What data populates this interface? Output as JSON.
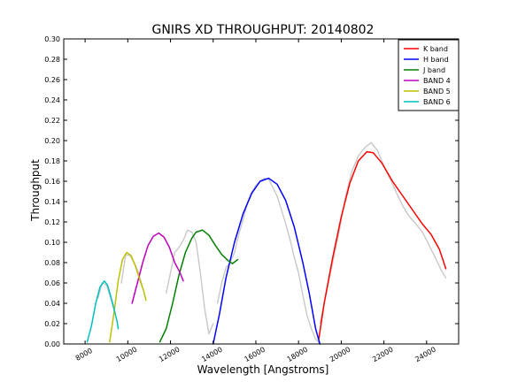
{
  "chart_data": {
    "type": "line",
    "title": "GNIRS XD THROUGHPUT:  20140802",
    "xlabel": "Wavelength [Angstroms]",
    "ylabel": "Throughput",
    "xlim": [
      7000,
      25500
    ],
    "ylim": [
      0.0,
      0.3
    ],
    "xticks": [
      8000,
      10000,
      12000,
      14000,
      16000,
      18000,
      20000,
      22000,
      24000
    ],
    "xtick_labels": [
      "8000",
      "10000",
      "12000",
      "14000",
      "16000",
      "18000",
      "20000",
      "22000",
      "24000"
    ],
    "yticks": [
      0.0,
      0.02,
      0.04,
      0.06,
      0.08,
      0.1,
      0.12,
      0.14,
      0.16,
      0.18,
      0.2,
      0.22,
      0.24,
      0.26,
      0.28,
      0.3
    ],
    "ytick_labels": [
      "0.00",
      "0.02",
      "0.04",
      "0.06",
      "0.08",
      "0.10",
      "0.12",
      "0.14",
      "0.16",
      "0.18",
      "0.20",
      "0.22",
      "0.24",
      "0.26",
      "0.28",
      "0.30"
    ],
    "grid": false,
    "legend_position": "top-right",
    "series": [
      {
        "name": "K band",
        "color": "#ff0000",
        "x": [
          18950,
          19200,
          19600,
          20000,
          20400,
          20800,
          21200,
          21500,
          21900,
          22400,
          22900,
          23400,
          23800,
          24200,
          24600,
          24900
        ],
        "y": [
          0.005,
          0.04,
          0.085,
          0.125,
          0.158,
          0.18,
          0.189,
          0.188,
          0.178,
          0.16,
          0.145,
          0.13,
          0.118,
          0.108,
          0.093,
          0.074
        ]
      },
      {
        "name": "H band",
        "color": "#0000ff",
        "x": [
          14000,
          14300,
          14600,
          15000,
          15400,
          15800,
          16200,
          16600,
          17000,
          17400,
          17800,
          18200,
          18500,
          18800,
          19000
        ],
        "y": [
          0.0,
          0.03,
          0.065,
          0.1,
          0.128,
          0.148,
          0.16,
          0.163,
          0.157,
          0.141,
          0.115,
          0.08,
          0.05,
          0.015,
          0.0
        ]
      },
      {
        "name": "J band",
        "color": "#008000",
        "x": [
          11500,
          11800,
          12100,
          12400,
          12700,
          13000,
          13200,
          13500,
          13800,
          14100,
          14400,
          14700,
          14900,
          15150
        ],
        "y": [
          0.002,
          0.015,
          0.04,
          0.068,
          0.09,
          0.104,
          0.11,
          0.112,
          0.107,
          0.097,
          0.088,
          0.082,
          0.079,
          0.083
        ]
      },
      {
        "name": "BAND 4",
        "color": "#bf00bf",
        "x": [
          10200,
          10450,
          10700,
          10950,
          11200,
          11450,
          11700,
          11950,
          12200,
          12450,
          12600
        ],
        "y": [
          0.04,
          0.06,
          0.08,
          0.097,
          0.106,
          0.109,
          0.105,
          0.095,
          0.08,
          0.07,
          0.062
        ]
      },
      {
        "name": "BAND 5",
        "color": "#bfbf00",
        "x": [
          9150,
          9350,
          9550,
          9750,
          9950,
          10150,
          10350,
          10550,
          10750,
          10850
        ],
        "y": [
          0.002,
          0.03,
          0.062,
          0.083,
          0.09,
          0.087,
          0.077,
          0.064,
          0.052,
          0.043
        ]
      },
      {
        "name": "BAND 6",
        "color": "#00bfbf",
        "x": [
          8100,
          8300,
          8500,
          8700,
          8900,
          9050,
          9200,
          9350,
          9500,
          9550
        ],
        "y": [
          0.002,
          0.018,
          0.04,
          0.056,
          0.062,
          0.058,
          0.047,
          0.035,
          0.022,
          0.015
        ]
      }
    ],
    "measured_series": {
      "color": "#c8c8c8",
      "segments": [
        {
          "x": [
            8600,
            8800,
            9000,
            9200,
            9400
          ],
          "y": [
            0.045,
            0.06,
            0.058,
            0.045,
            0.03
          ]
        },
        {
          "x": [
            9700,
            9900,
            10100,
            10300,
            10500,
            10700
          ],
          "y": [
            0.06,
            0.088,
            0.087,
            0.08,
            0.07,
            0.055
          ]
        },
        {
          "x": [
            11800,
            12000,
            12200,
            12400,
            12600,
            12800,
            13000,
            13200,
            13400,
            13600,
            13800,
            14000
          ],
          "y": [
            0.05,
            0.07,
            0.09,
            0.095,
            0.102,
            0.112,
            0.11,
            0.1,
            0.07,
            0.035,
            0.01,
            0.02
          ]
        },
        {
          "x": [
            14200,
            14400,
            14600,
            14800,
            15000,
            15200,
            15400,
            15600,
            15800,
            16000,
            16200,
            16400,
            16600,
            16800,
            17000,
            17200,
            17400,
            17600,
            17800,
            18000,
            18200,
            18400,
            18600,
            18800,
            19000
          ],
          "y": [
            0.04,
            0.06,
            0.075,
            0.08,
            0.09,
            0.108,
            0.122,
            0.138,
            0.149,
            0.156,
            0.16,
            0.163,
            0.162,
            0.154,
            0.145,
            0.132,
            0.118,
            0.103,
            0.085,
            0.07,
            0.048,
            0.028,
            0.015,
            0.005,
            0.0
          ]
        },
        {
          "x": [
            19000,
            19300,
            19600,
            19900,
            20200,
            20500,
            20800,
            21100,
            21400,
            21700,
            22000,
            22300,
            22600,
            22900,
            23200,
            23500,
            23800,
            24100,
            24400,
            24700,
            24900
          ],
          "y": [
            0.02,
            0.05,
            0.08,
            0.11,
            0.145,
            0.17,
            0.185,
            0.193,
            0.198,
            0.19,
            0.175,
            0.162,
            0.148,
            0.135,
            0.125,
            0.118,
            0.11,
            0.098,
            0.085,
            0.072,
            0.065
          ]
        }
      ]
    }
  }
}
